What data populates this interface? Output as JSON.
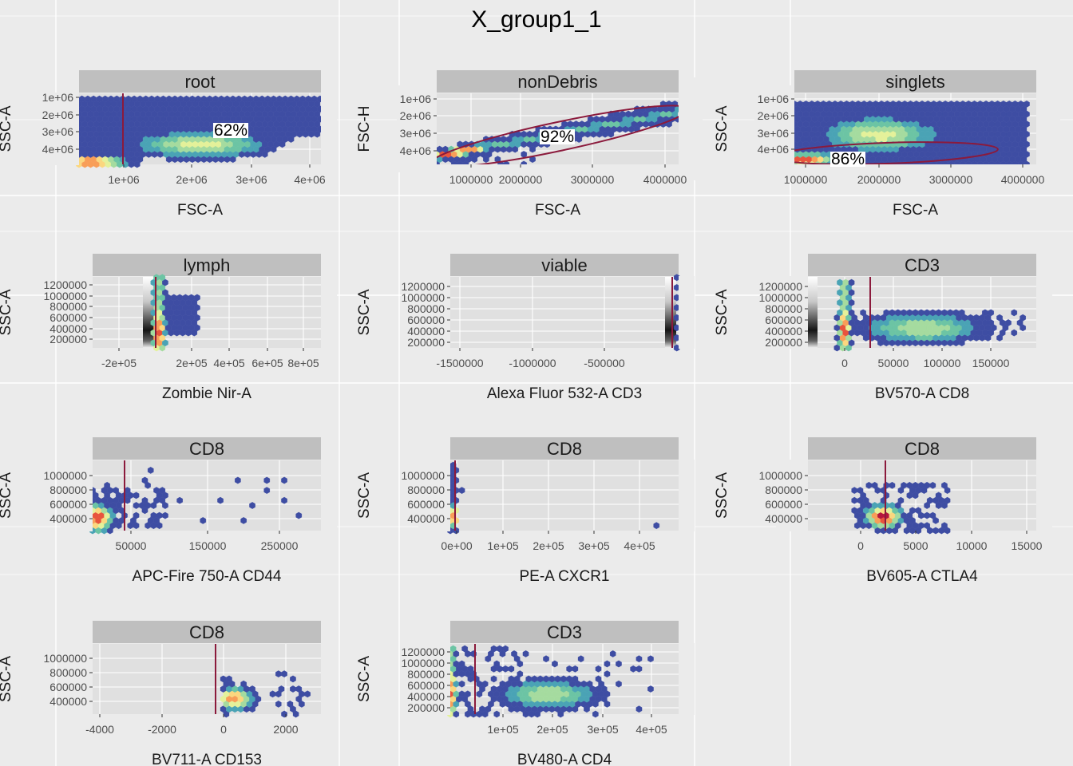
{
  "title": "X_group1_1",
  "colors": {
    "page_bg": "#ebebeb",
    "page_grid": "#ffffff",
    "panel_bg": "#e0e0e0",
    "strip_bg": "#bfbfbf",
    "gate": "#8b1a3c",
    "hex_low": "#3b3f99",
    "hex_palette": [
      "#3e4da3",
      "#3a7bb8",
      "#4aa3b5",
      "#6cc4a4",
      "#a5db9f",
      "#e4f19a",
      "#fbd77f",
      "#f89e58",
      "#e8543d",
      "#b5163d"
    ]
  },
  "chart_data": [
    {
      "type": "hexbin",
      "strip": "root",
      "xlabel": "FSC-A",
      "ylabel": "SSC-A",
      "x_ticks": [
        "1e+06",
        "2e+06",
        "3e+06",
        "4e+06"
      ],
      "y_ticks": [
        "1e+06",
        "2e+06",
        "3e+06",
        "4e+06"
      ],
      "gate": {
        "kind": "vertical",
        "x": "~8e+05"
      },
      "percent": "62%"
    },
    {
      "type": "hexbin",
      "strip": "nonDebris",
      "xlabel": "FSC-A",
      "ylabel": "FSC-H",
      "x_ticks": [
        "1000000",
        "2000000",
        "3000000",
        "4000000"
      ],
      "y_ticks": [
        "1e+06",
        "2e+06",
        "3e+06",
        "4e+06"
      ],
      "gate": {
        "kind": "ellipse"
      },
      "percent": "92%"
    },
    {
      "type": "hexbin",
      "strip": "singlets",
      "xlabel": "FSC-A",
      "ylabel": "SSC-A",
      "x_ticks": [
        "1000000",
        "2000000",
        "3000000",
        "4000000"
      ],
      "y_ticks": [
        "1e+06",
        "2e+06",
        "3e+06",
        "4e+06"
      ],
      "gate": {
        "kind": "ellipse"
      },
      "percent": "86%"
    },
    {
      "type": "hexbin",
      "strip": "lymph",
      "xlabel": "Zombie Nir-A",
      "ylabel": "SSC-A",
      "x_ticks": [
        "-2e+05",
        "2e+05",
        "4e+05",
        "6e+05",
        "8e+05"
      ],
      "y_ticks": [
        "200000",
        "400000",
        "600000",
        "800000",
        "1000000",
        "1200000"
      ],
      "gate": {
        "kind": "vertical",
        "x": "~0"
      }
    },
    {
      "type": "hexbin",
      "strip": "viable",
      "xlabel": "Alexa Fluor 532-A CD3",
      "ylabel": "SSC-A",
      "x_ticks": [
        "-1500000",
        "-1000000",
        "-500000"
      ],
      "y_ticks": [
        "200000",
        "400000",
        "600000",
        "800000",
        "1000000",
        "1200000"
      ],
      "gate": {
        "kind": "vertical",
        "x": "~0"
      }
    },
    {
      "type": "hexbin",
      "strip": "CD3",
      "xlabel": "BV570-A CD8",
      "ylabel": "SSC-A",
      "x_ticks": [
        "0",
        "50000",
        "100000",
        "150000"
      ],
      "y_ticks": [
        "200000",
        "400000",
        "600000",
        "800000",
        "1000000",
        "1200000"
      ],
      "gate": {
        "kind": "vertical",
        "x": "~27000"
      }
    },
    {
      "type": "hexbin",
      "strip": "CD8",
      "xlabel": "APC-Fire 750-A CD44",
      "ylabel": "SSC-A",
      "x_ticks": [
        "50000",
        "150000",
        "250000"
      ],
      "y_ticks": [
        "400000",
        "600000",
        "800000",
        "1000000"
      ],
      "gate": {
        "kind": "vertical",
        "x": "~42000"
      }
    },
    {
      "type": "hexbin",
      "strip": "CD8",
      "xlabel": "PE-A CXCR1",
      "ylabel": "SSC-A",
      "x_ticks": [
        "0e+00",
        "1e+05",
        "2e+05",
        "3e+05",
        "4e+05"
      ],
      "y_ticks": [
        "400000",
        "600000",
        "800000",
        "1000000"
      ],
      "gate": {
        "kind": "vertical",
        "x": "~0"
      }
    },
    {
      "type": "hexbin",
      "strip": "CD8",
      "xlabel": "BV605-A CTLA4",
      "ylabel": "SSC-A",
      "x_ticks": [
        "0",
        "5000",
        "10000",
        "15000"
      ],
      "y_ticks": [
        "400000",
        "600000",
        "800000",
        "1000000"
      ],
      "gate": {
        "kind": "vertical",
        "x": "~2200"
      }
    },
    {
      "type": "hexbin",
      "strip": "CD8",
      "xlabel": "BV711-A CD153",
      "ylabel": "SSC-A",
      "x_ticks": [
        "-4000",
        "-2000",
        "0",
        "2000"
      ],
      "y_ticks": [
        "400000",
        "600000",
        "800000",
        "1000000"
      ],
      "gate": {
        "kind": "vertical",
        "x": "~-200"
      }
    },
    {
      "type": "hexbin",
      "strip": "CD3",
      "xlabel": "BV480-A CD4",
      "ylabel": "SSC-A",
      "x_ticks": [
        "1e+05",
        "2e+05",
        "3e+05",
        "4e+05"
      ],
      "y_ticks": [
        "200000",
        "400000",
        "600000",
        "800000",
        "1000000",
        "1200000"
      ],
      "gate": {
        "kind": "vertical",
        "x": "~45000"
      }
    }
  ]
}
